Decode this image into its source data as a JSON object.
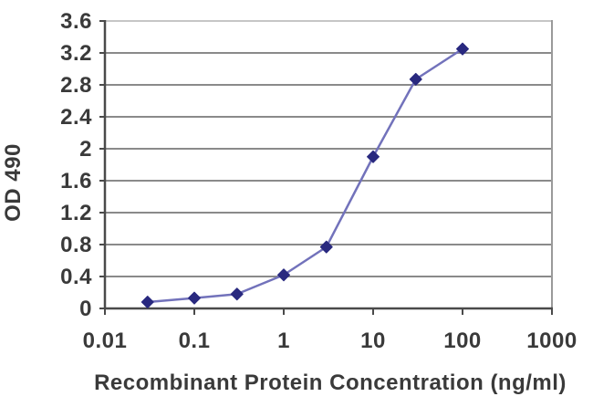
{
  "chart_data": {
    "type": "line",
    "title": "",
    "xlabel": "Recombinant Protein Concentration (ng/ml)",
    "ylabel": "OD 490",
    "x_scale": "log",
    "y_scale": "linear",
    "xlim": [
      0.01,
      1000
    ],
    "ylim": [
      0,
      3.6
    ],
    "x_ticks": [
      0.01,
      0.1,
      1,
      10,
      100,
      1000
    ],
    "x_tick_labels": [
      "0.01",
      "0.1",
      "1",
      "10",
      "100",
      "1000"
    ],
    "y_ticks": [
      0,
      0.4,
      0.8,
      1.2,
      1.6,
      2,
      2.4,
      2.8,
      3.2,
      3.6
    ],
    "y_tick_labels": [
      "0",
      "0.4",
      "0.8",
      "1.2",
      "1.6",
      "2",
      "2.4",
      "2.8",
      "3.2",
      "3.6"
    ],
    "grid": "horizontal",
    "legend": "none",
    "series": [
      {
        "name": "OD 490",
        "x": [
          0.03,
          0.1,
          0.3,
          1,
          3,
          10,
          30,
          100
        ],
        "y": [
          0.08,
          0.13,
          0.18,
          0.42,
          0.77,
          1.9,
          2.87,
          3.25
        ],
        "marker": "diamond"
      }
    ]
  },
  "colors": {
    "background": "#ffffff",
    "gridline": "#8a8a8a",
    "plot_border_top": "#c6c6c6",
    "plot_border_right": "#9a9a9a",
    "axis": "#4a4a4a",
    "text": "#3a3a3a",
    "series_line": "#7272bb",
    "series_marker": "#29297f"
  }
}
